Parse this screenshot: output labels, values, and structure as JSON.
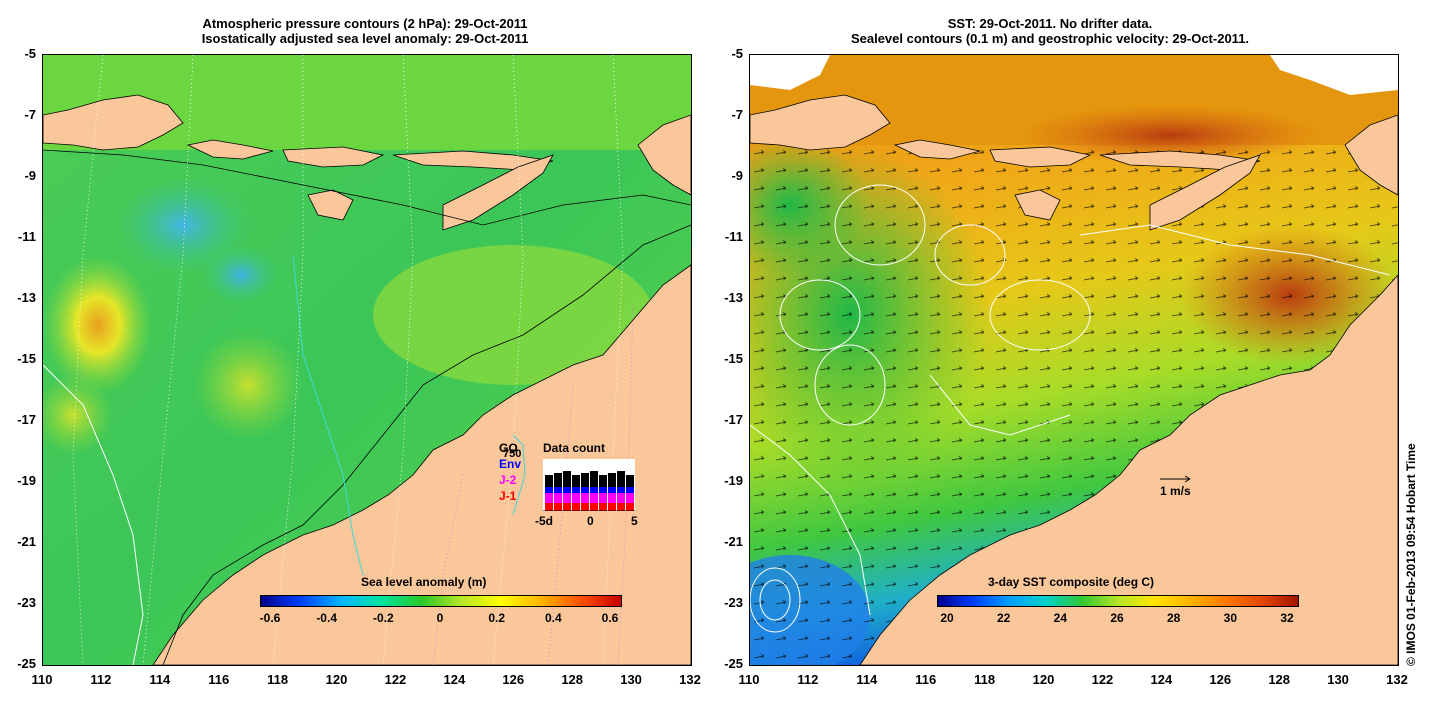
{
  "left_panel": {
    "title_line1": "Atmospheric pressure contours (2 hPa): 29-Oct-2011",
    "title_line2": "Isostatically adjusted sea level anomaly: 29-Oct-2011",
    "colorbar": {
      "title": "Sea level anomaly (m)",
      "ticks": [
        "-0.6",
        "-0.4",
        "-0.2",
        "0",
        "0.2",
        "0.4",
        "0.6"
      ],
      "colors": [
        "#00008c",
        "#0040ff",
        "#00b4ff",
        "#00e6a0",
        "#28c828",
        "#b4e628",
        "#ffff00",
        "#ffb400",
        "#ff5000",
        "#c80000"
      ]
    },
    "legend": {
      "title": "Data count",
      "count_label": "750",
      "sources": [
        {
          "name": "GO",
          "color": "#000000"
        },
        {
          "name": "Env",
          "color": "#0000ff"
        },
        {
          "name": "J-2",
          "color": "#ff00ff"
        },
        {
          "name": "J-1",
          "color": "#ff0000"
        }
      ],
      "x_ticks": [
        "-5d",
        "0",
        "5"
      ]
    }
  },
  "right_panel": {
    "title_line1": "SST: 29-Oct-2011. No drifter data.",
    "title_line2": "Sealevel contours (0.1 m) and geostrophic velocity: 29-Oct-2011.",
    "velocity_scale_label": "1 m/s",
    "colorbar": {
      "title": "3-day SST composite (deg C)",
      "ticks": [
        "20",
        "22",
        "24",
        "26",
        "28",
        "30",
        "32"
      ],
      "colors": [
        "#00008c",
        "#0040ff",
        "#00a0ff",
        "#00d2c8",
        "#32c832",
        "#b4e628",
        "#ffe600",
        "#ffb400",
        "#ff7800",
        "#e64600",
        "#a01400"
      ]
    }
  },
  "axes": {
    "y_ticks": [
      "-5",
      "-7",
      "-9",
      "-11",
      "-13",
      "-15",
      "-17",
      "-19",
      "-21",
      "-23",
      "-25"
    ],
    "left_x_ticks": [
      "110",
      "112",
      "114",
      "116",
      "118",
      "120",
      "122",
      "124",
      "126",
      "128",
      "130",
      "132"
    ],
    "right_x_ticks": [
      "110",
      "112",
      "114",
      "116",
      "118",
      "120",
      "122",
      "124",
      "126",
      "128",
      "130",
      "132"
    ]
  },
  "credit": "© IMOS 01-Feb-2013 09:54 Hobart Time",
  "colors": {
    "land": "#f9c79a",
    "ocean_green": "#38c850",
    "ocean_mid": "#5bd45a",
    "sst_warm": "#e8900f",
    "sst_hot": "#c05010",
    "sst_cool": "#30c840"
  }
}
